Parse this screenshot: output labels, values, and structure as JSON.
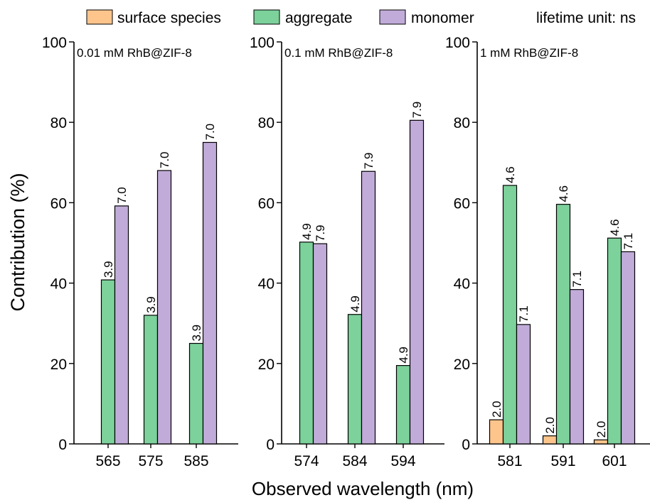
{
  "legend": {
    "items": [
      {
        "label": "surface species",
        "color": "#fdc58c"
      },
      {
        "label": "aggregate",
        "color": "#7dd19b"
      },
      {
        "label": "monomer",
        "color": "#c1acd9"
      }
    ],
    "note": "lifetime unit: ns"
  },
  "axes": {
    "ylabel": "Contribution (%)",
    "xlabel": "Observed wavelength (nm)"
  },
  "chart_data": [
    {
      "type": "bar",
      "title": "0.01 mM RhB@ZIF-8",
      "categories": [
        "565",
        "575",
        "585"
      ],
      "ylim": [
        0,
        100
      ],
      "yticks": [
        "0",
        "20",
        "40",
        "60",
        "80",
        "100"
      ],
      "series": [
        {
          "name": "surface species",
          "values": [
            0,
            0,
            0
          ],
          "labels": [
            "",
            "",
            ""
          ]
        },
        {
          "name": "aggregate",
          "values": [
            40.8,
            32.0,
            25.0
          ],
          "labels": [
            "3.9",
            "3.9",
            "3.9"
          ]
        },
        {
          "name": "monomer",
          "values": [
            59.2,
            68.0,
            75.0
          ],
          "labels": [
            "7.0",
            "7.0",
            "7.0"
          ]
        }
      ]
    },
    {
      "type": "bar",
      "title": "0.1 mM RhB@ZIF-8",
      "categories": [
        "574",
        "584",
        "594"
      ],
      "ylim": [
        0,
        100
      ],
      "yticks": [
        "0",
        "20",
        "40",
        "60",
        "80",
        "100"
      ],
      "series": [
        {
          "name": "surface species",
          "values": [
            0,
            0,
            0
          ],
          "labels": [
            "",
            "",
            ""
          ]
        },
        {
          "name": "aggregate",
          "values": [
            50.2,
            32.2,
            19.5
          ],
          "labels": [
            "4.9",
            "4.9",
            "4.9"
          ]
        },
        {
          "name": "monomer",
          "values": [
            49.8,
            67.8,
            80.5
          ],
          "labels": [
            "7.9",
            "7.9",
            "7.9"
          ]
        }
      ]
    },
    {
      "type": "bar",
      "title": "1 mM RhB@ZIF-8",
      "categories": [
        "581",
        "591",
        "601"
      ],
      "ylim": [
        0,
        100
      ],
      "yticks": [
        "0",
        "20",
        "40",
        "60",
        "80",
        "100"
      ],
      "series": [
        {
          "name": "surface species",
          "values": [
            6.0,
            2.0,
            1.0
          ],
          "labels": [
            "2.0",
            "2.0",
            "2.0"
          ]
        },
        {
          "name": "aggregate",
          "values": [
            64.3,
            59.6,
            51.2
          ],
          "labels": [
            "4.6",
            "4.6",
            "4.6"
          ]
        },
        {
          "name": "monomer",
          "values": [
            29.7,
            38.4,
            47.8
          ],
          "labels": [
            "7.1",
            "7.1",
            "7.1"
          ]
        }
      ]
    }
  ]
}
